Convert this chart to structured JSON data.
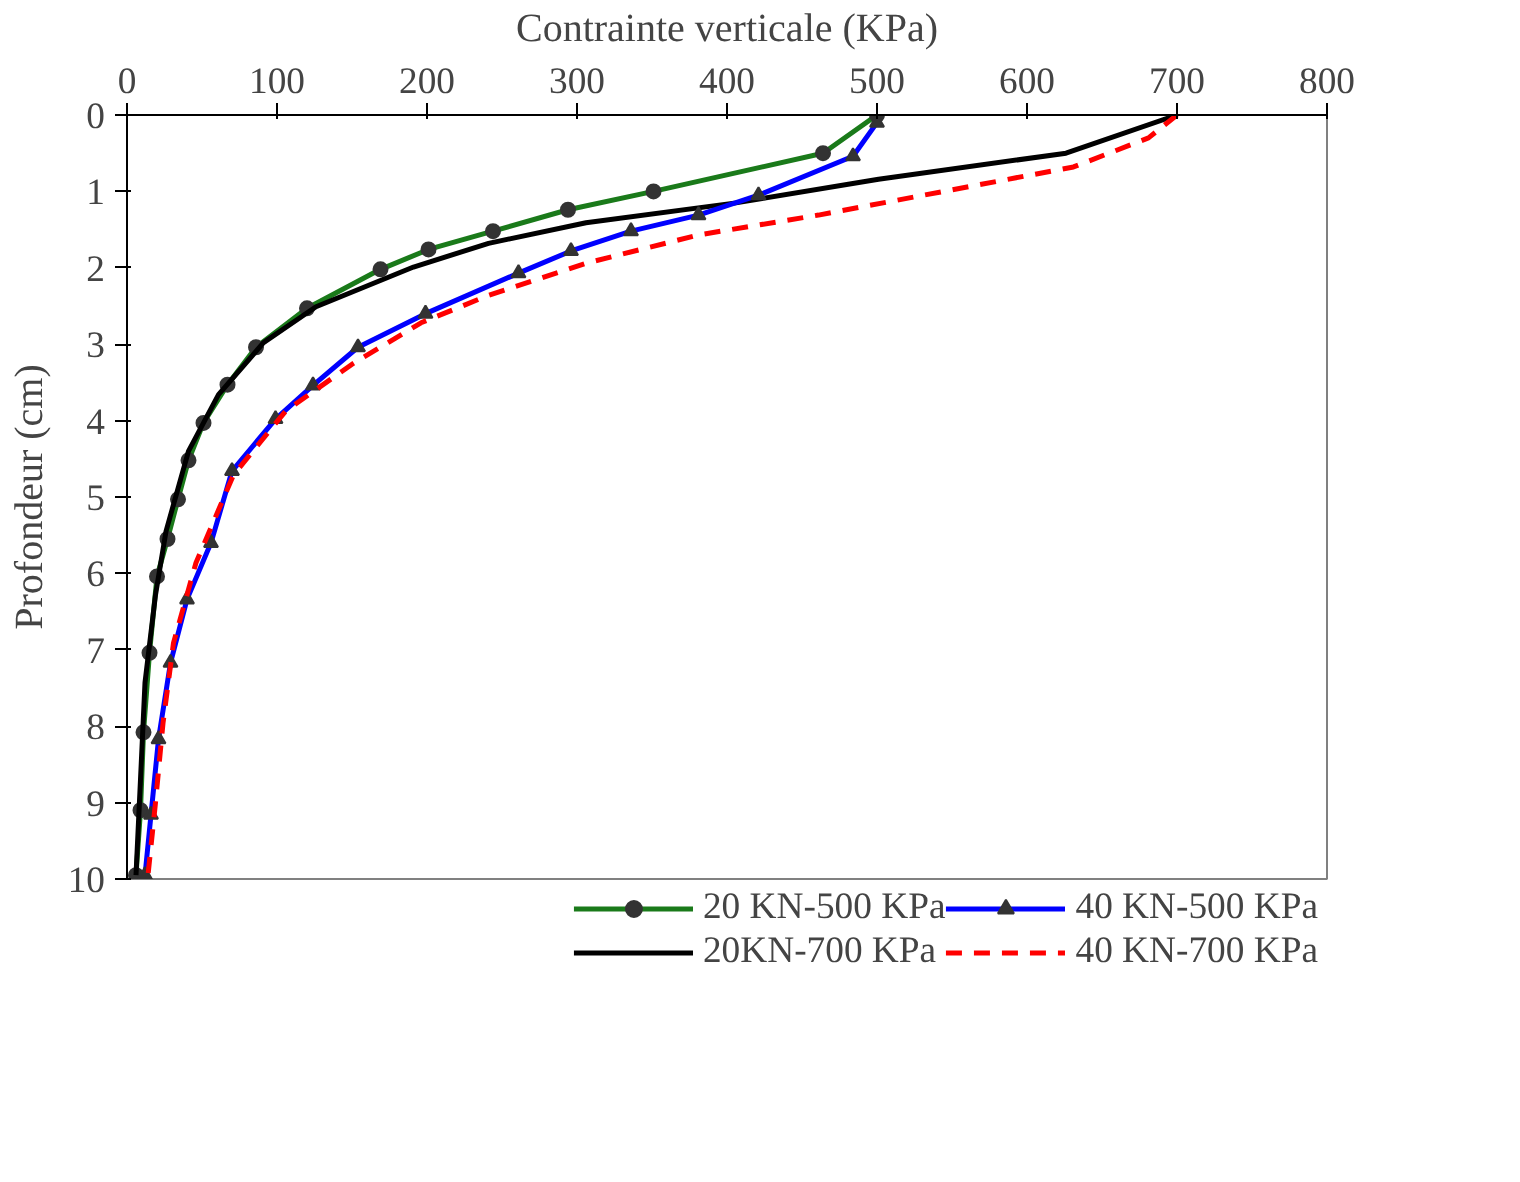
{
  "chart_data": {
    "type": "line",
    "xlabel": "Contrainte verticale (KPa)",
    "ylabel": "Profondeur (cm)",
    "xlim": [
      0,
      800
    ],
    "xticks": [
      0,
      100,
      200,
      300,
      400,
      500,
      600,
      700,
      800
    ],
    "ylim": [
      10,
      0
    ],
    "yticks": [
      0,
      1,
      2,
      3,
      4,
      5,
      6,
      7,
      8,
      9,
      10
    ],
    "grid": false,
    "legend": "bottom",
    "series": [
      {
        "name": "20 KN-500 KPa",
        "color": "#1a7a1a",
        "marker": "circle",
        "line_style": "solid",
        "x": [
          500,
          464,
          351,
          294,
          244,
          201,
          169,
          120,
          86,
          67,
          51,
          41,
          34,
          27,
          20,
          15,
          11,
          9,
          6
        ],
        "values": [
          0,
          0.5,
          1.0,
          1.24,
          1.52,
          1.76,
          2.02,
          2.53,
          3.04,
          3.53,
          4.03,
          4.52,
          5.03,
          5.55,
          6.04,
          7.04,
          8.08,
          9.1,
          9.95
        ]
      },
      {
        "name": "20KN-700 KPa",
        "color": "#000000",
        "marker": "none",
        "line_style": "solid",
        "x": [
          700,
          626,
          501,
          406,
          306,
          241,
          191,
          126,
          91,
          61,
          41,
          26,
          19,
          12,
          9,
          6
        ],
        "values": [
          0,
          0.5,
          0.84,
          1.15,
          1.41,
          1.68,
          1.99,
          2.51,
          2.98,
          3.66,
          4.4,
          5.45,
          6.28,
          7.43,
          8.7,
          9.95
        ]
      },
      {
        "name": "40 KN-500 KPa",
        "color": "#0000ff",
        "marker": "triangle",
        "line_style": "solid",
        "x": [
          500,
          484,
          421,
          381,
          336,
          296,
          261,
          199,
          154,
          124,
          99,
          70,
          56,
          40,
          29,
          21,
          16,
          12
        ],
        "values": [
          0.1,
          0.54,
          1.05,
          1.31,
          1.52,
          1.78,
          2.07,
          2.6,
          3.04,
          3.54,
          3.98,
          4.66,
          5.6,
          6.34,
          7.17,
          8.17,
          9.16,
          9.95
        ]
      },
      {
        "name": "40 KN-700 KPa",
        "color": "#ff0000",
        "marker": "none",
        "line_style": "dashed",
        "x": [
          700,
          681,
          631,
          531,
          461,
          381,
          306,
          241,
          196,
          151,
          106,
          71,
          46,
          31,
          24,
          19,
          14
        ],
        "values": [
          0,
          0.3,
          0.68,
          1.05,
          1.31,
          1.57,
          1.94,
          2.36,
          2.72,
          3.25,
          3.87,
          4.71,
          5.86,
          6.91,
          7.96,
          9.0,
          9.95
        ]
      }
    ]
  }
}
